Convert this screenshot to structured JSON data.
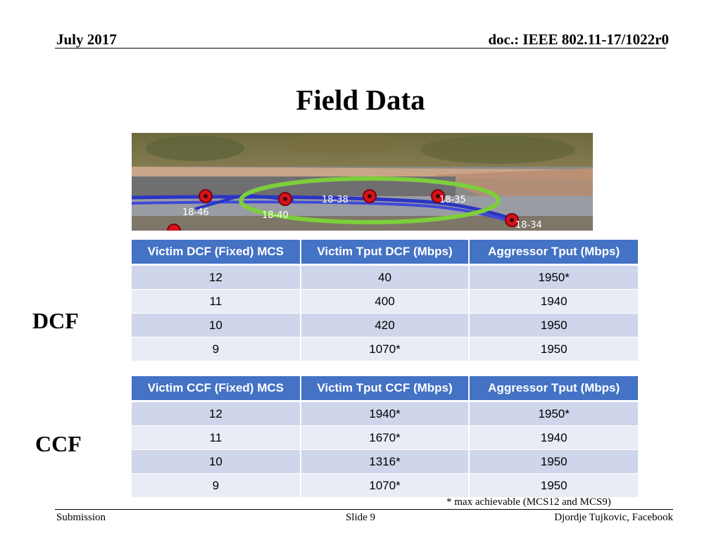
{
  "header": {
    "date": "July 2017",
    "doc": "doc.: IEEE 802.11-17/1022r0"
  },
  "title": "Field Data",
  "map": {
    "labels": [
      "18-46",
      "18-40",
      "18-38",
      "18-35",
      "18-34"
    ],
    "colors": {
      "route": "#2b35c4",
      "highlight": "#7ccf3a",
      "marker": "#d8121b"
    }
  },
  "dcf": {
    "label": "DCF",
    "headers": [
      "Victim DCF (Fixed) MCS",
      "Victim Tput DCF (Mbps)",
      "Aggressor Tput (Mbps)"
    ],
    "rows": [
      [
        "12",
        "40",
        "1950*"
      ],
      [
        "11",
        "400",
        "1940"
      ],
      [
        "10",
        "420",
        "1950"
      ],
      [
        "9",
        "1070*",
        "1950"
      ]
    ]
  },
  "ccf": {
    "label": "CCF",
    "headers": [
      "Victim CCF (Fixed) MCS",
      "Victim Tput CCF (Mbps)",
      "Aggressor Tput (Mbps)"
    ],
    "rows": [
      [
        "12",
        "1940*",
        "1950*"
      ],
      [
        "11",
        "1670*",
        "1940"
      ],
      [
        "10",
        "1316*",
        "1950"
      ],
      [
        "9",
        "1070*",
        "1950"
      ]
    ]
  },
  "footnote": "* max achievable (MCS12 and MCS9)",
  "footer": {
    "left": "Submission",
    "center": "Slide 9",
    "right": "Djordje Tujkovic, Facebook"
  },
  "colors": {
    "table_header": "#4472c4",
    "row_odd": "#cfd5ea",
    "row_even": "#e9ebf5"
  }
}
